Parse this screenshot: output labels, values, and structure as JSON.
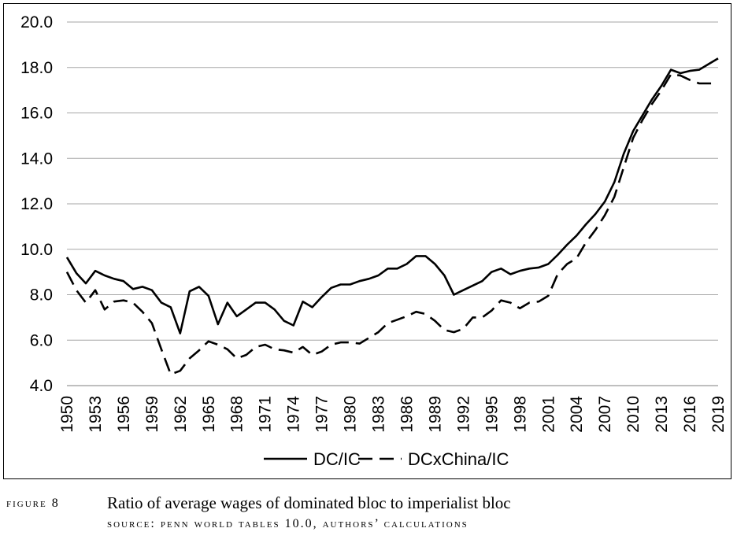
{
  "chart_data": {
    "type": "line",
    "title": "",
    "xlabel": "",
    "ylabel": "",
    "ylim": [
      4.0,
      20.0
    ],
    "yticks": [
      "4.0",
      "6.0",
      "8.0",
      "10.0",
      "12.0",
      "14.0",
      "16.0",
      "18.0",
      "20.0"
    ],
    "xticks": [
      "1950",
      "1953",
      "1956",
      "1959",
      "1962",
      "1965",
      "1968",
      "1971",
      "1974",
      "1977",
      "1980",
      "1983",
      "1986",
      "1989",
      "1992",
      "1995",
      "1998",
      "2001",
      "2004",
      "2007",
      "2010",
      "2013",
      "2016",
      "2019"
    ],
    "xlim": [
      1950,
      2019
    ],
    "grid": true,
    "legend_position": "bottom",
    "x": [
      1950,
      1951,
      1952,
      1953,
      1954,
      1955,
      1956,
      1957,
      1958,
      1959,
      1960,
      1961,
      1962,
      1963,
      1964,
      1965,
      1966,
      1967,
      1968,
      1969,
      1970,
      1971,
      1972,
      1973,
      1974,
      1975,
      1976,
      1977,
      1978,
      1979,
      1980,
      1981,
      1982,
      1983,
      1984,
      1985,
      1986,
      1987,
      1988,
      1989,
      1990,
      1991,
      1992,
      1993,
      1994,
      1995,
      1996,
      1997,
      1998,
      1999,
      2000,
      2001,
      2002,
      2003,
      2004,
      2005,
      2006,
      2007,
      2008,
      2009,
      2010,
      2011,
      2012,
      2013,
      2014,
      2015,
      2016,
      2017,
      2018,
      2019
    ],
    "series": [
      {
        "name": "DC/IC",
        "style": "solid",
        "values": [
          9.65,
          8.95,
          8.5,
          9.05,
          8.85,
          8.7,
          8.6,
          8.25,
          8.35,
          8.2,
          7.65,
          7.45,
          6.3,
          8.15,
          8.35,
          7.95,
          6.7,
          7.65,
          7.05,
          7.35,
          7.65,
          7.65,
          7.35,
          6.85,
          6.65,
          7.7,
          7.45,
          7.9,
          8.3,
          8.45,
          8.45,
          8.6,
          8.7,
          8.85,
          9.15,
          9.15,
          9.35,
          9.7,
          9.7,
          9.35,
          8.85,
          8.0,
          8.2,
          8.4,
          8.6,
          9.0,
          9.15,
          8.9,
          9.05,
          9.15,
          9.2,
          9.35,
          9.75,
          10.2,
          10.6,
          11.1,
          11.55,
          12.1,
          12.95,
          14.2,
          15.2,
          15.9,
          16.6,
          17.2,
          17.9,
          17.75,
          17.85,
          17.9,
          18.15,
          18.4
        ]
      },
      {
        "name": "DCxChina/IC",
        "style": "dashed",
        "values": [
          9.0,
          8.2,
          7.65,
          8.2,
          7.35,
          7.7,
          7.75,
          7.65,
          7.25,
          6.75,
          5.6,
          4.5,
          4.65,
          5.2,
          5.55,
          5.95,
          5.8,
          5.6,
          5.2,
          5.35,
          5.7,
          5.8,
          5.6,
          5.55,
          5.45,
          5.7,
          5.35,
          5.5,
          5.8,
          5.9,
          5.9,
          5.85,
          6.1,
          6.35,
          6.75,
          6.9,
          7.05,
          7.25,
          7.15,
          6.85,
          6.45,
          6.35,
          6.5,
          7.0,
          7.0,
          7.3,
          7.75,
          7.65,
          7.4,
          7.65,
          7.7,
          7.95,
          8.9,
          9.35,
          9.6,
          10.3,
          10.85,
          11.5,
          12.3,
          13.6,
          14.9,
          15.7,
          16.4,
          17.0,
          17.7,
          17.65,
          17.45,
          17.3,
          17.3,
          17.3
        ]
      }
    ]
  },
  "caption": {
    "figure_number": "FIGURE 8",
    "title": "Ratio of average wages of dominated bloc to imperialist bloc",
    "source": "SOURCE: PENN WORLD TABLES 10.0, AUTHORS’ CALCULATIONS"
  }
}
